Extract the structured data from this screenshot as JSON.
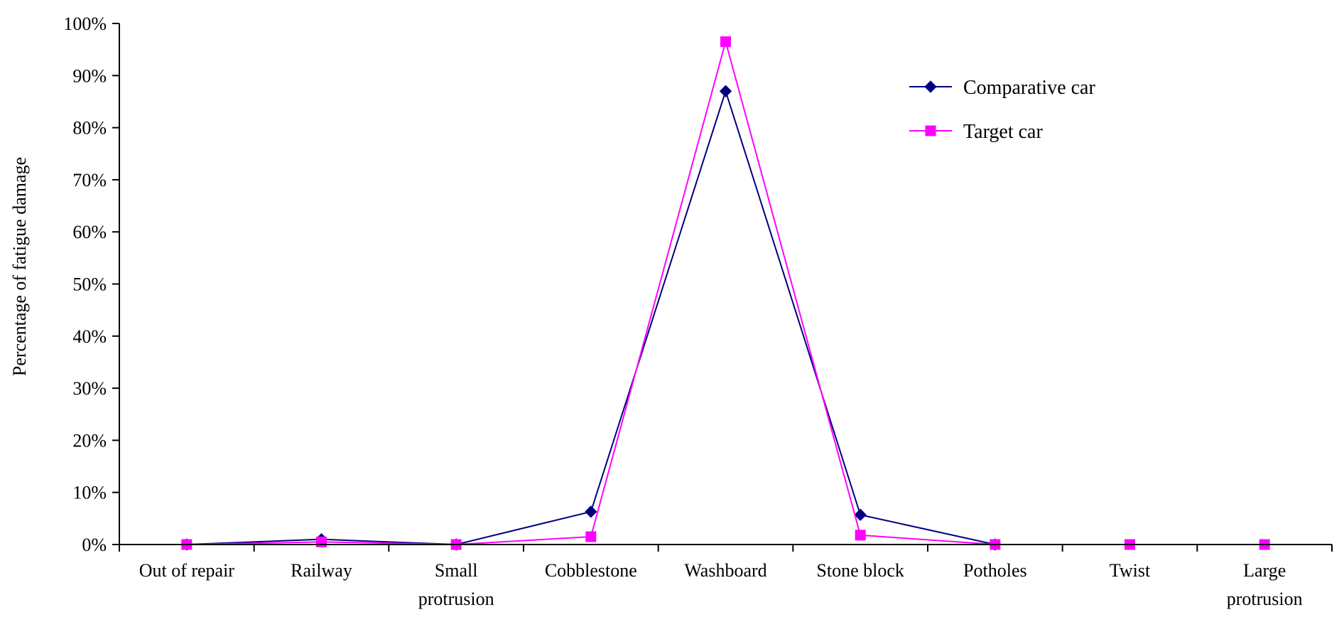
{
  "chart_data": {
    "type": "line",
    "title": "",
    "xlabel": "",
    "ylabel": "Percentage of fatigue damage",
    "categories": [
      [
        "Out of repair"
      ],
      [
        "Railway"
      ],
      [
        "Small",
        "protrusion"
      ],
      [
        "Cobblestone"
      ],
      [
        "Washboard"
      ],
      [
        "Stone block"
      ],
      [
        "Potholes"
      ],
      [
        "Twist"
      ],
      [
        "Large",
        "protrusion"
      ]
    ],
    "ylim": [
      0,
      100
    ],
    "yticks": [
      "0%",
      "10%",
      "20%",
      "30%",
      "40%",
      "50%",
      "60%",
      "70%",
      "80%",
      "90%",
      "100%"
    ],
    "grid": false,
    "legend_position": "top-right",
    "series": [
      {
        "name": "Comparative car",
        "color": "#000080",
        "marker": "diamond",
        "values": [
          0,
          1.0,
          0,
          6.3,
          87.0,
          5.7,
          0,
          null,
          null
        ]
      },
      {
        "name": "Target car",
        "color": "#ff00ff",
        "marker": "square",
        "values": [
          0,
          0.5,
          0,
          1.5,
          96.5,
          1.8,
          0,
          0,
          0
        ]
      }
    ]
  }
}
